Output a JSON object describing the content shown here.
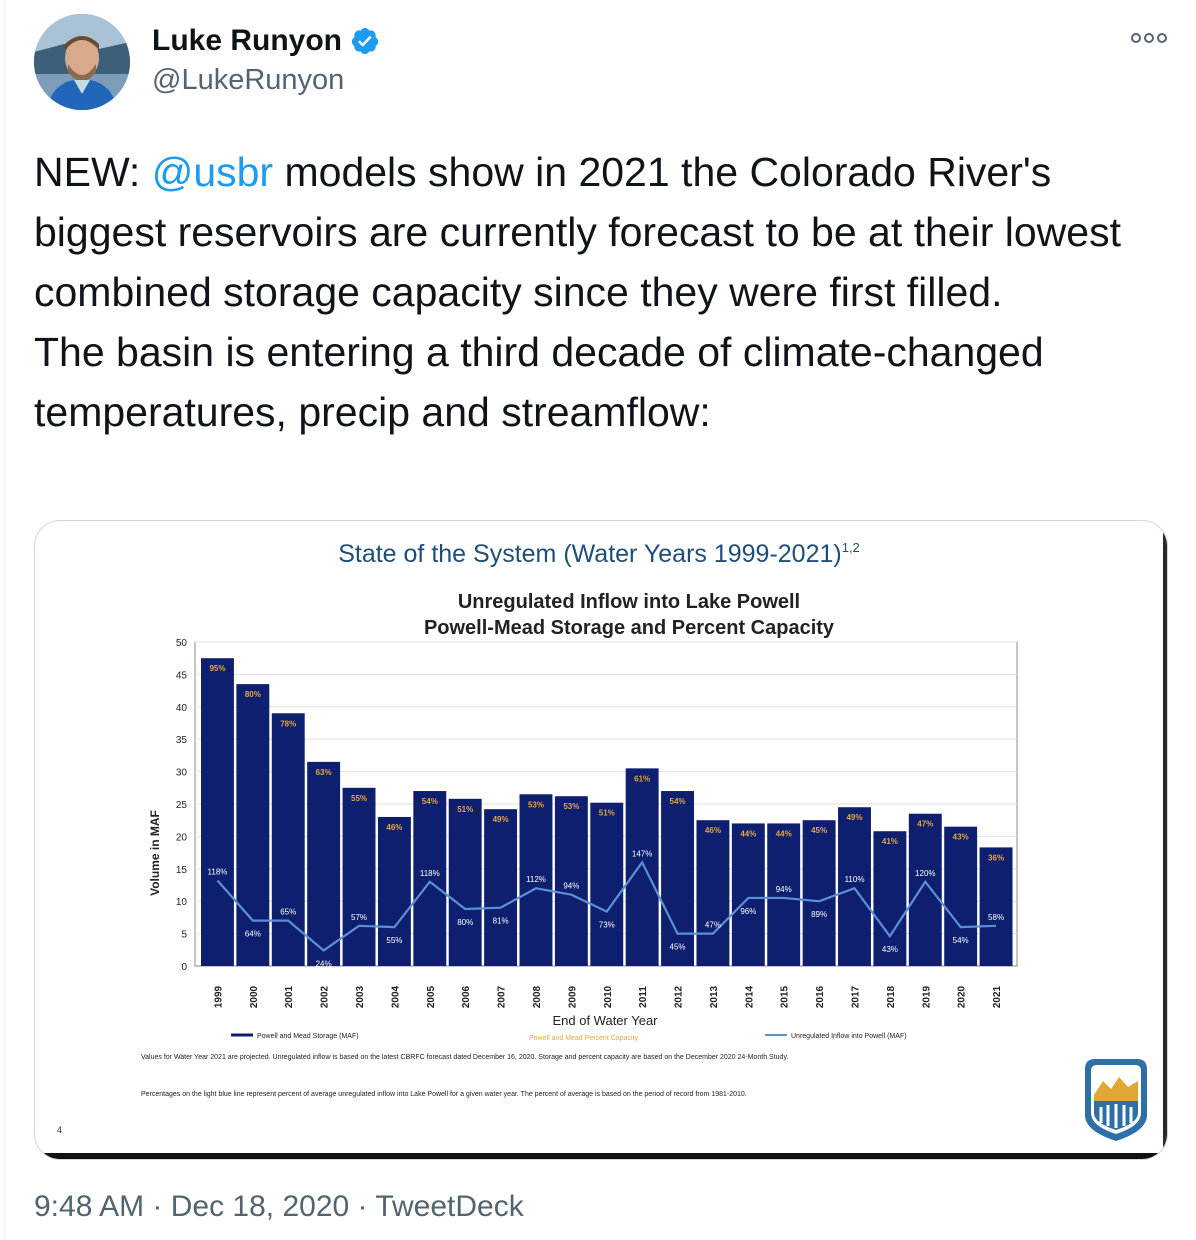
{
  "user": {
    "name": "Luke Runyon",
    "handle": "@LukeRunyon",
    "verified": true
  },
  "tweet": {
    "prefix": "NEW: ",
    "mention": "@usbr",
    "line1_rest": " models show in 2021 the Colorado River's biggest reservoirs are currently forecast to be at their lowest combined storage capacity since they were first filled.",
    "line2": "The basin is entering a third decade of climate-changed temperatures, precip and streamflow:"
  },
  "footer": {
    "time": "9:48 AM",
    "sep1": " · ",
    "date": "Dec 18, 2020",
    "sep2": " · ",
    "source": "TweetDeck"
  },
  "colors": {
    "bar": "#0d1f6e",
    "inflow_line": "#5b8fd6",
    "title_blue": "#1f4e79",
    "accent": "#1d9bf0"
  },
  "chart_data": {
    "type": "bar",
    "title": "State of the System (Water Years 1999-2021)",
    "title_sup": "1,2",
    "subtitle1": "Unregulated Inflow into Lake Powell",
    "subtitle2": "Powell-Mead Storage and Percent Capacity",
    "xlabel": "End of Water Year",
    "ylabel": "Volume in MAF",
    "ylim": [
      0,
      50
    ],
    "yticks": [
      0,
      5,
      10,
      15,
      20,
      25,
      30,
      35,
      40,
      45,
      50
    ],
    "categories": [
      "1999",
      "2000",
      "2001",
      "2002",
      "2003",
      "2004",
      "2005",
      "2006",
      "2007",
      "2008",
      "2009",
      "2010",
      "2011",
      "2012",
      "2013",
      "2014",
      "2015",
      "2016",
      "2017",
      "2018",
      "2019",
      "2020",
      "2021"
    ],
    "series": [
      {
        "name": "Powell and Mead Storage (MAF)",
        "values": [
          47.5,
          43.5,
          39,
          31.5,
          27.5,
          23,
          27,
          25.8,
          24.2,
          26.5,
          26.2,
          25.2,
          30.5,
          27,
          22.5,
          22,
          22,
          22.5,
          24.5,
          20.8,
          23.5,
          21.5,
          18.3
        ],
        "labels": [
          "95%",
          "80%",
          "78%",
          "63%",
          "55%",
          "46%",
          "54%",
          "51%",
          "49%",
          "53%",
          "53%",
          "51%",
          "61%",
          "54%",
          "46%",
          "44%",
          "44%",
          "45%",
          "49%",
          "41%",
          "47%",
          "43%",
          "36%"
        ]
      },
      {
        "name": "Unregulated Inflow into Powell (MAF)",
        "values": [
          13.2,
          7,
          7,
          2.4,
          6.2,
          6,
          13,
          8.8,
          9,
          12,
          11,
          8.4,
          16,
          5,
          5,
          10.5,
          10.5,
          10,
          12,
          4.6,
          13,
          6,
          6.2
        ],
        "labels": [
          "118%",
          "64%",
          "65%",
          "24%",
          "57%",
          "55%",
          "118%",
          "80%",
          "81%",
          "112%",
          "94%",
          "73%",
          "147%",
          "45%",
          "47%",
          "96%",
          "94%",
          "89%",
          "110%",
          "43%",
          "120%",
          "54%",
          "58%"
        ]
      }
    ],
    "legend_pct": "Powell and Mead Percent Capacity",
    "footnote1": "Values for Water Year 2021 are projected. Unregulated inflow is based on the latest CBRFC forecast dated December 16, 2020. Storage and percent capacity are based on the December 2020 24-Month Study.",
    "footnote2": "Percentages on the light blue line represent percent of average unregulated inflow into Lake Powell for a given water year. The percent of average is based on the period of record from 1981-2010.",
    "slide_number": "4"
  }
}
